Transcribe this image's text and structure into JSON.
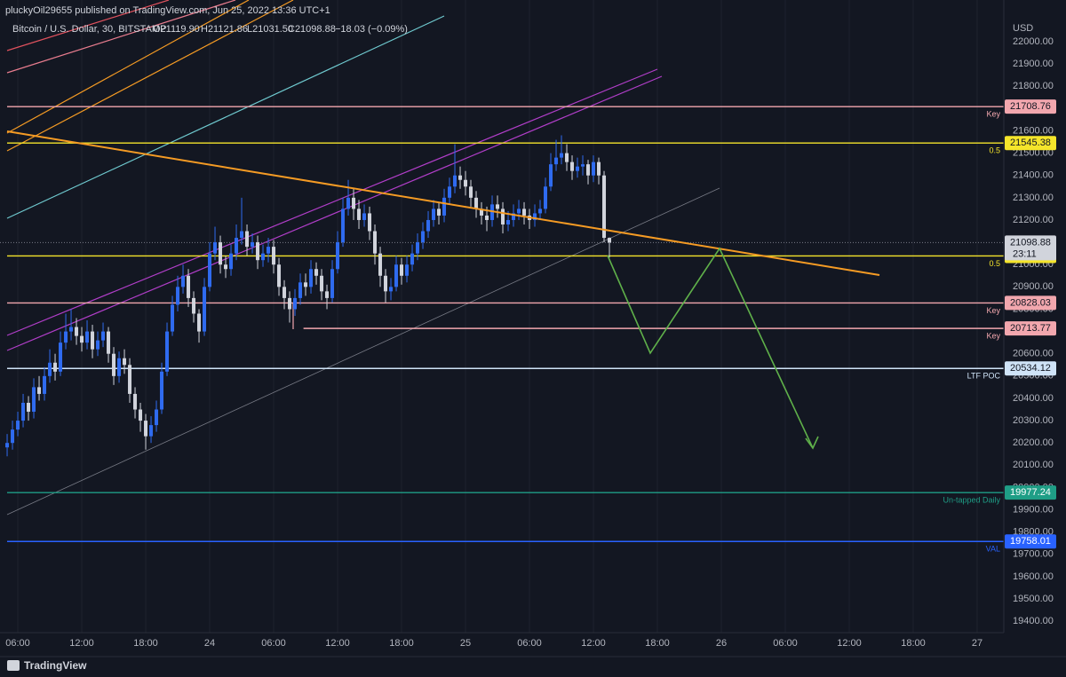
{
  "header": {
    "publisher": "pluckyOil29655 published on TradingView.com, Jun 25, 2022 13:36 UTC+1",
    "symbol": "Bitcoin / U.S. Dollar, 30, BITSTAMP",
    "o": "O21119.90",
    "h": "H21121.86",
    "l": "L21031.50",
    "c": "C21098.88",
    "change": "−18.03 (−0.09%)"
  },
  "footer": {
    "brand": "TradingView"
  },
  "chart_data": {
    "type": "candlestick",
    "currency": "USD",
    "up_color": "#2f6bf0",
    "down_color": "#d1d4dc",
    "grid": true,
    "xlim": [
      4.33,
      98.5
    ],
    "ylim": [
      19349,
      22187
    ],
    "xticks": [
      {
        "value": 6,
        "label": "06:00"
      },
      {
        "value": 12,
        "label": "12:00"
      },
      {
        "value": 18,
        "label": "18:00"
      },
      24,
      {
        "value": 30,
        "label": "06:00"
      },
      {
        "value": 36,
        "label": "12:00"
      },
      {
        "value": 42,
        "label": "18:00"
      },
      {
        "value": 48,
        "label": "25"
      },
      {
        "value": 54,
        "label": "06:00"
      },
      {
        "value": 60,
        "label": "12:00"
      },
      {
        "value": 66,
        "label": "18:00"
      },
      {
        "value": 72,
        "label": "26"
      },
      {
        "value": 78,
        "label": "06:00"
      },
      {
        "value": 84,
        "label": "12:00"
      },
      {
        "value": 90,
        "label": "18:00"
      },
      {
        "value": 96,
        "label": "27"
      }
    ],
    "yticks": [
      {
        "value": 19400,
        "label": "19400.00"
      },
      {
        "value": 19500,
        "label": "19500.00"
      },
      {
        "value": 19600,
        "label": "19600.00"
      },
      {
        "value": 19700,
        "label": "19700.00"
      },
      {
        "value": 19800,
        "label": "19800.00"
      },
      {
        "value": 19900,
        "label": "19900.00"
      },
      {
        "value": 20000,
        "label": "20000.00"
      },
      {
        "value": 20100,
        "label": "20100.00"
      },
      {
        "value": 20200,
        "label": "20200.00"
      },
      {
        "value": 20300,
        "label": "20300.00"
      },
      {
        "value": 20400,
        "label": "20400.00"
      },
      {
        "value": 20500,
        "label": "20500.00"
      },
      {
        "value": 20600,
        "label": "20600.00"
      },
      {
        "value": 20700,
        "label": "20700.00"
      },
      {
        "value": 20800,
        "label": "20800.00"
      },
      {
        "value": 20900,
        "label": "20900.00"
      },
      {
        "value": 21000,
        "label": "21000.00"
      },
      {
        "value": 21100,
        "label": "21100.00"
      },
      {
        "value": 21200,
        "label": "21200.00"
      },
      {
        "value": 21300,
        "label": "21300.00"
      },
      {
        "value": 21400,
        "label": "21400.00"
      },
      {
        "value": 21500,
        "label": "21500.00"
      },
      {
        "value": 21600,
        "label": "21600.00"
      },
      {
        "value": 21700,
        "label": "21700.00"
      },
      {
        "value": 21800,
        "label": "21800.00"
      },
      {
        "value": 21900,
        "label": "21900.00"
      },
      {
        "value": 22000,
        "label": "22000.00"
      }
    ],
    "levels": [
      {
        "value": 21708.76,
        "note": "Key",
        "color": "#f2a7ae"
      },
      {
        "value": 21545.38,
        "note": "0.5",
        "color": "#f5e52b"
      },
      {
        "value": 21038.82,
        "note": "0.5",
        "color": "#f5e52b"
      },
      {
        "value": 20828.03,
        "note": "Key",
        "color": "#f2a7ae"
      },
      {
        "value": 20713.77,
        "note": "Key",
        "color": "#f2a7ae",
        "from": 32.8
      },
      {
        "value": 20534.12,
        "note": "LTF POC",
        "color": "#cfe3f7"
      },
      {
        "value": 19977.24,
        "note": "Un-tapped Daily",
        "color": "#1f9e86"
      },
      {
        "value": 19758.01,
        "note": "VAL",
        "color": "#2962ff"
      }
    ],
    "last_price": 21098.88,
    "countdown": "23:11",
    "x": [
      5,
      5.5,
      6,
      6.5,
      7,
      7.5,
      8,
      8.5,
      9,
      9.5,
      10,
      10.5,
      11,
      11.5,
      12,
      12.5,
      13,
      13.5,
      14,
      14.5,
      15,
      15.5,
      16,
      16.5,
      17,
      17.5,
      18,
      18.5,
      19,
      19.5,
      20,
      20.5,
      21,
      21.5,
      22,
      22.5,
      23,
      23.5,
      24,
      24.5,
      25,
      25.5,
      26,
      26.5,
      27,
      27.5,
      28,
      28.5,
      29,
      29.5,
      30,
      30.5,
      31,
      31.5,
      32,
      32.5,
      33,
      33.5,
      34,
      34.5,
      35,
      35.5,
      36,
      36.5,
      37,
      37.5,
      38,
      38.5,
      39,
      39.5,
      40,
      40.5,
      41,
      41.5,
      42,
      42.5,
      43,
      43.5,
      44,
      44.5,
      45,
      45.5,
      46,
      46.5,
      47,
      47.5,
      48,
      48.5,
      49,
      49.5,
      50,
      50.5,
      51,
      51.5,
      52,
      52.5,
      53,
      53.5,
      54,
      54.5,
      55,
      55.5,
      56,
      56.5,
      57,
      57.5,
      58,
      58.5,
      59,
      59.5,
      60,
      60.5,
      61,
      61.5
    ],
    "open": [
      20180,
      20200,
      20260,
      20300,
      20380,
      20340,
      20450,
      20420,
      20500,
      20560,
      20520,
      20650,
      20700,
      20720,
      20680,
      20650,
      20700,
      20620,
      20660,
      20700,
      20600,
      20500,
      20580,
      20550,
      20420,
      20350,
      20300,
      20230,
      20280,
      20350,
      20520,
      20700,
      20820,
      20900,
      20950,
      20850,
      20780,
      20700,
      20900,
      21050,
      21100,
      21000,
      20980,
      21050,
      21120,
      21150,
      21080,
      21100,
      21020,
      21050,
      21080,
      21000,
      20900,
      20850,
      20800,
      20850,
      20920,
      20900,
      20980,
      20950,
      20880,
      20850,
      20980,
      21100,
      21250,
      21300,
      21250,
      21200,
      21230,
      21150,
      21050,
      20950,
      20880,
      20900,
      21000,
      20950,
      21000,
      21050,
      21100,
      21150,
      21200,
      21250,
      21220,
      21300,
      21350,
      21400,
      21380,
      21350,
      21300,
      21250,
      21220,
      21200,
      21270,
      21250,
      21180,
      21200,
      21230,
      21250,
      21220,
      21200,
      21230,
      21250,
      21350,
      21450,
      21480,
      21500,
      21460,
      21420,
      21440,
      21450,
      21400,
      21460,
      21400,
      21119.9
    ],
    "high": [
      20240,
      20300,
      20340,
      20420,
      20410,
      20490,
      20500,
      20540,
      20620,
      20600,
      20700,
      20780,
      20800,
      20760,
      20720,
      20750,
      20730,
      20700,
      20740,
      20720,
      20630,
      20610,
      20620,
      20580,
      20450,
      20380,
      20330,
      20320,
      20390,
      20560,
      20740,
      20860,
      20950,
      21000,
      20980,
      20880,
      20800,
      20940,
      21100,
      21170,
      21130,
      21040,
      21090,
      21180,
      21300,
      21180,
      21140,
      21130,
      21090,
      21120,
      21110,
      21030,
      20930,
      20880,
      20890,
      20960,
      20960,
      21020,
      21010,
      20980,
      20910,
      21020,
      21150,
      21300,
      21380,
      21340,
      21290,
      21270,
      21260,
      21180,
      21080,
      20980,
      20940,
      21040,
      21030,
      21040,
      21090,
      21140,
      21190,
      21240,
      21290,
      21280,
      21340,
      21390,
      21540,
      21440,
      21420,
      21380,
      21330,
      21280,
      21260,
      21310,
      21310,
      21280,
      21240,
      21270,
      21290,
      21280,
      21250,
      21270,
      21290,
      21390,
      21500,
      21560,
      21580,
      21540,
      21490,
      21480,
      21490,
      21470,
      21490,
      21480,
      21420,
      21121.86
    ],
    "low": [
      20140,
      20170,
      20230,
      20270,
      20300,
      20310,
      20390,
      20390,
      20470,
      20480,
      20500,
      20620,
      20660,
      20640,
      20610,
      20620,
      20580,
      20590,
      20630,
      20560,
      20460,
      20470,
      20510,
      20380,
      20310,
      20250,
      20170,
      20200,
      20250,
      20330,
      20500,
      20680,
      20790,
      20870,
      20810,
      20740,
      20650,
      20680,
      20880,
      21020,
      20960,
      20940,
      20950,
      21020,
      21090,
      21040,
      21050,
      20980,
      20990,
      21010,
      20960,
      20860,
      20800,
      20740,
      20770,
      20820,
      20860,
      20870,
      20910,
      20840,
      20800,
      20830,
      20960,
      21080,
      21220,
      21200,
      21160,
      21170,
      21110,
      21000,
      20900,
      20830,
      20840,
      20880,
      20910,
      20920,
      20970,
      21020,
      21070,
      21120,
      21170,
      21180,
      21190,
      21270,
      21320,
      21340,
      21310,
      21260,
      21210,
      21180,
      21150,
      21170,
      21210,
      21140,
      21150,
      21170,
      21200,
      21180,
      21160,
      21170,
      21200,
      21230,
      21330,
      21420,
      21450,
      21420,
      21380,
      21390,
      21400,
      21360,
      21370,
      21360,
      21100,
      21031.5
    ],
    "close": [
      20200,
      20260,
      20300,
      20380,
      20340,
      20450,
      20420,
      20500,
      20560,
      20520,
      20650,
      20700,
      20720,
      20680,
      20650,
      20700,
      20620,
      20660,
      20700,
      20600,
      20500,
      20580,
      20550,
      20420,
      20350,
      20300,
      20230,
      20280,
      20350,
      20520,
      20700,
      20820,
      20900,
      20950,
      20850,
      20780,
      20700,
      20900,
      21050,
      21100,
      21000,
      20980,
      21050,
      21120,
      21150,
      21080,
      21100,
      21020,
      21050,
      21080,
      21000,
      20900,
      20850,
      20800,
      20850,
      20920,
      20900,
      20980,
      20950,
      20880,
      20850,
      20980,
      21100,
      21250,
      21300,
      21250,
      21200,
      21230,
      21150,
      21050,
      20950,
      20880,
      20900,
      21000,
      20950,
      21000,
      21050,
      21100,
      21150,
      21200,
      21250,
      21220,
      21300,
      21350,
      21400,
      21380,
      21350,
      21300,
      21250,
      21220,
      21200,
      21270,
      21250,
      21180,
      21200,
      21230,
      21250,
      21220,
      21200,
      21230,
      21250,
      21350,
      21450,
      21480,
      21500,
      21460,
      21420,
      21440,
      21450,
      21400,
      21460,
      21400,
      21120,
      21098.88
    ]
  }
}
